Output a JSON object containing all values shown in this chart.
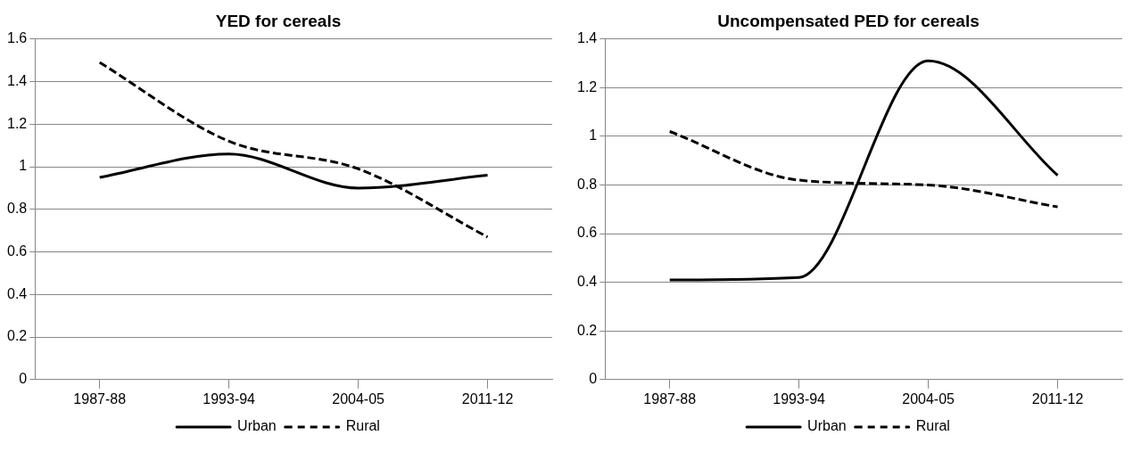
{
  "chart_data": [
    {
      "type": "line",
      "title": "YED for cereals",
      "categories": [
        "1987-88",
        "1993-94",
        "2004-05",
        "2011-12"
      ],
      "ylim": [
        0,
        1.6
      ],
      "yticks": [
        0,
        0.2,
        0.4,
        0.6,
        0.8,
        1,
        1.2,
        1.4,
        1.6
      ],
      "grid": "y",
      "legend": "bottom",
      "series": [
        {
          "name": "Urban",
          "color": "#000000",
          "line_style": "solid",
          "values": [
            0.95,
            1.06,
            0.9,
            0.96
          ]
        },
        {
          "name": "Rural",
          "color": "#000000",
          "line_style": "dashed",
          "values": [
            1.49,
            1.12,
            0.99,
            0.67
          ]
        }
      ]
    },
    {
      "type": "line",
      "title": "Uncompensated PED for cereals",
      "categories": [
        "1987-88",
        "1993-94",
        "2004-05",
        "2011-12"
      ],
      "ylim": [
        0,
        1.4
      ],
      "yticks": [
        0,
        0.2,
        0.4,
        0.6,
        0.8,
        1,
        1.2,
        1.4
      ],
      "grid": "y",
      "legend": "bottom",
      "series": [
        {
          "name": "Urban",
          "color": "#000000",
          "line_style": "solid",
          "values": [
            0.41,
            0.42,
            1.31,
            0.84
          ]
        },
        {
          "name": "Rural",
          "color": "#000000",
          "line_style": "dashed",
          "values": [
            1.02,
            0.82,
            0.8,
            0.71
          ]
        }
      ]
    }
  ]
}
